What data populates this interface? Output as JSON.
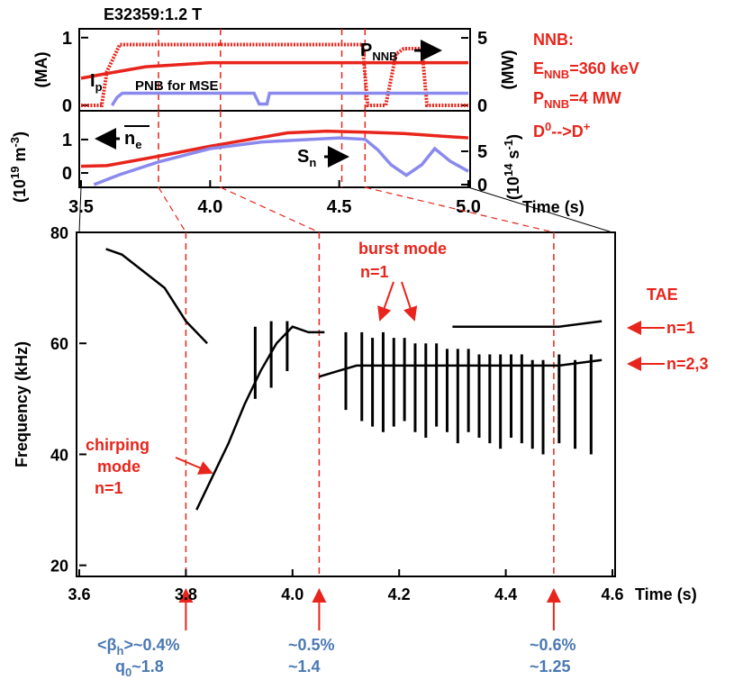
{
  "chart_data": [
    {
      "type": "line",
      "title": "E32359:1.2 T",
      "ylabel": "(MA)",
      "y2label": "(MW)",
      "xlim": [
        3.5,
        5.0
      ],
      "ylim": [
        -0.08,
        1.13
      ],
      "yticks": [
        0,
        1
      ],
      "y2lim": [
        -0.4,
        5.67
      ],
      "y2ticks": [
        0,
        5
      ],
      "markers": [
        3.8,
        4.04,
        4.51,
        4.6
      ],
      "series": [
        {
          "name": [
            "I",
            "p"
          ],
          "color": "#e8251c",
          "axis": "y",
          "x": [
            3.5,
            3.6,
            3.75,
            4.0,
            5.0
          ],
          "values": [
            0.4,
            0.47,
            0.57,
            0.63,
            0.63
          ]
        },
        {
          "name": [
            "P",
            "NNB"
          ],
          "color": "#e8251c",
          "axis": "y2",
          "hatched": true,
          "x": [
            3.5,
            3.58,
            3.6,
            3.65,
            4.59,
            4.61,
            4.68,
            4.72,
            4.75,
            4.82,
            4.84,
            5.0
          ],
          "values": [
            0,
            0,
            2.5,
            4.5,
            4.5,
            0,
            0,
            3.8,
            4.2,
            4.2,
            0,
            0
          ]
        },
        {
          "name": [
            "PNB for MSE"
          ],
          "color": "#8a8aee",
          "axis": "y2",
          "x": [
            3.62,
            3.64,
            3.66,
            4.17,
            4.19,
            4.22,
            4.23,
            5.0
          ],
          "values": [
            0,
            0.6,
            0.9,
            0.9,
            0.1,
            0.1,
            0.9,
            0.9
          ]
        }
      ]
    },
    {
      "type": "line",
      "ylabel": [
        "(10",
        "19",
        " m",
        "-3",
        ")"
      ],
      "y2label": [
        "(10",
        "14",
        " s",
        "-1",
        ")"
      ],
      "xlabel": "Time (s)",
      "xlim": [
        3.5,
        5.0
      ],
      "ylim": [
        -0.43,
        1.86
      ],
      "yticks": [
        0,
        1
      ],
      "y2lim": [
        -0.41,
        11.08
      ],
      "y2ticks": [
        0,
        5
      ],
      "xticks": [
        3.5,
        {
          "value": 4.0,
          "label": "4.0"
        },
        4.5,
        {
          "value": 5.0,
          "label": "5.0"
        }
      ],
      "markers": [
        3.8,
        4.04,
        4.51,
        4.6
      ],
      "series": [
        {
          "name": [
            "n",
            "e"
          ],
          "color": "#e8251c",
          "axis": "y",
          "x": [
            3.5,
            3.6,
            3.8,
            4.0,
            4.15,
            4.3,
            4.45,
            4.6,
            4.75,
            4.9,
            5.0
          ],
          "values": [
            0.2,
            0.22,
            0.5,
            0.8,
            1.0,
            1.2,
            1.25,
            1.22,
            1.18,
            1.1,
            1.05
          ]
        },
        {
          "name": [
            "S",
            "n"
          ],
          "color": "#8a8aee",
          "axis": "y2",
          "x": [
            3.55,
            3.65,
            3.8,
            4.0,
            4.2,
            4.35,
            4.5,
            4.6,
            4.65,
            4.7,
            4.76,
            4.82,
            4.87,
            4.93,
            5.0
          ],
          "values": [
            0,
            1.5,
            3.4,
            5.4,
            6.4,
            6.7,
            7.0,
            6.8,
            5.2,
            3.0,
            1.4,
            3.0,
            5.4,
            3.5,
            2.0
          ]
        }
      ]
    },
    {
      "type": "spectrogram",
      "xlabel": "Time (s)",
      "ylabel": "Frequency (kHz)",
      "xlim": [
        3.6,
        4.6
      ],
      "ylim": [
        18,
        80
      ],
      "yticks": [
        20,
        40,
        60,
        80
      ],
      "xticks": [
        3.6,
        3.8,
        {
          "value": 4.0,
          "label": "4.0"
        },
        4.2,
        4.4,
        4.6
      ],
      "markers": [
        3.8,
        4.05,
        4.49
      ],
      "color": "#000000",
      "traces": [
        {
          "x": [
            3.65,
            3.68,
            3.72,
            3.76,
            3.8,
            3.84
          ],
          "values": [
            77,
            76,
            73,
            70,
            64,
            60
          ]
        },
        {
          "x": [
            3.82,
            3.85,
            3.88,
            3.91,
            3.94,
            3.97,
            4.0,
            4.03,
            4.06
          ],
          "values": [
            30,
            36,
            42,
            49,
            55,
            60,
            63,
            62,
            62
          ]
        },
        {
          "x": [
            4.05,
            4.12,
            4.2,
            4.3,
            4.4,
            4.5,
            4.58
          ],
          "values": [
            54,
            56,
            56,
            56,
            56,
            56,
            57
          ]
        },
        {
          "x": [
            4.3,
            4.4,
            4.5,
            4.58
          ],
          "values": [
            63,
            63,
            63,
            64
          ]
        }
      ],
      "bursts": {
        "x": [
          3.93,
          3.96,
          3.99,
          4.1,
          4.13,
          4.15,
          4.17,
          4.19,
          4.21,
          4.23,
          4.25,
          4.27,
          4.29,
          4.31,
          4.33,
          4.35,
          4.37,
          4.39,
          4.41,
          4.43,
          4.45,
          4.47,
          4.5,
          4.53,
          4.56
        ],
        "low": [
          50,
          52,
          55,
          48,
          46,
          45,
          44,
          45,
          46,
          44,
          43,
          45,
          44,
          42,
          44,
          43,
          42,
          41,
          43,
          42,
          41,
          40,
          42,
          41,
          40
        ],
        "high": [
          63,
          64,
          64,
          62,
          62,
          61,
          62,
          61,
          61,
          60,
          60,
          60,
          59,
          59,
          59,
          58,
          58,
          58,
          58,
          58,
          57,
          57,
          58,
          57,
          58
        ]
      }
    }
  ],
  "annotations": {
    "nnb": "NNB:",
    "e_nnb": [
      "E",
      "NNB",
      "=360 keV"
    ],
    "p_nnb": [
      "P",
      "NNB",
      "=4 MW"
    ],
    "reaction": [
      "D",
      "0",
      "-->D",
      "+"
    ],
    "chirping": [
      "chirping",
      "mode",
      "n=1"
    ],
    "burst": [
      "burst mode",
      "n=1"
    ],
    "tae": [
      "TAE",
      "n=1",
      "n=2,3"
    ],
    "first": [
      "<β",
      "h",
      ">~0.4%",
      "q",
      "0",
      "~1.8"
    ],
    "second": [
      "~0.5%",
      "~1.4"
    ],
    "third": [
      "~0.6%",
      "~1.25"
    ]
  }
}
